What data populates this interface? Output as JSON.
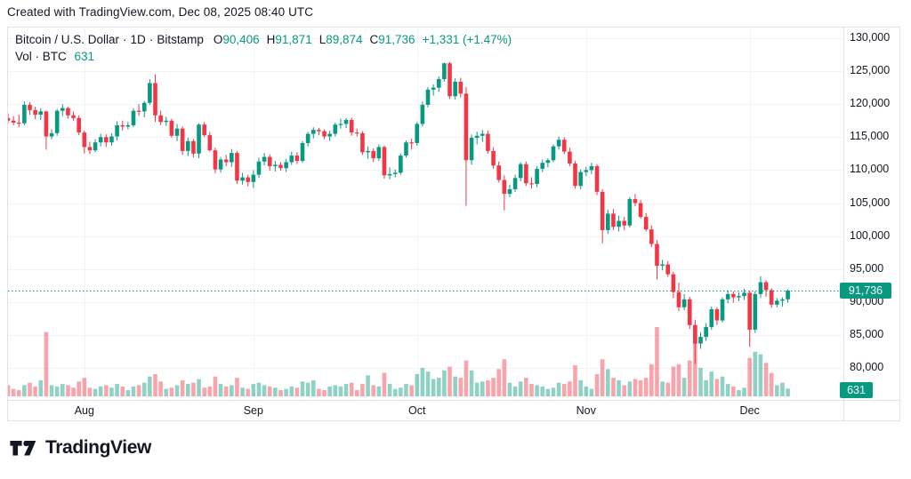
{
  "attribution": "Created with TradingView.com, Dec 08, 2025 08:40 UTC",
  "legend": {
    "symbol": "Bitcoin / U.S. Dollar",
    "sep": "·",
    "interval": "1D",
    "exchange": "Bitstamp",
    "ohlc": [
      {
        "label": "O",
        "value": "90,406"
      },
      {
        "label": "H",
        "value": "91,871"
      },
      {
        "label": "L",
        "value": "89,874"
      },
      {
        "label": "C",
        "value": "91,736"
      }
    ],
    "change": "+1,331 (+1.47%)",
    "volume_row": {
      "label": "Vol · BTC",
      "value": "631"
    }
  },
  "price_axis": {
    "tick_labels": [
      "130,000",
      "125,000",
      "120,000",
      "115,000",
      "110,000",
      "105,000",
      "100,000",
      "95,000",
      "90,000",
      "85,000",
      "80,000"
    ],
    "current_price_badge": "91,736",
    "current_volume_badge": "631"
  },
  "time_axis": {
    "labels": [
      "Aug",
      "Sep",
      "Oct",
      "Nov",
      "Dec"
    ]
  },
  "footer": {
    "brand": "TradingView"
  },
  "colors": {
    "up": "#089981",
    "down": "#f23645",
    "up_volume": "rgba(8,153,129,0.45)",
    "down_volume": "rgba(242,54,69,0.45)",
    "grid": "#f0f3fa",
    "border": "#e0e3eb",
    "text": "#131722",
    "accent": "#089981",
    "badge_text": "#ffffff"
  },
  "chart_data": {
    "type": "candlestick",
    "title": "Bitcoin / U.S. Dollar · 1D · Bitstamp",
    "subpane": "Volume BTC",
    "start_date": "2025-07-18",
    "end_date": "2025-12-08",
    "y_axis_ticks": [
      130000,
      125000,
      120000,
      115000,
      110000,
      105000,
      100000,
      95000,
      90000,
      85000,
      80000
    ],
    "months": [
      {
        "label": "Aug",
        "index": 14
      },
      {
        "label": "Sep",
        "index": 45
      },
      {
        "label": "Oct",
        "index": 75
      },
      {
        "label": "Nov",
        "index": 106
      },
      {
        "label": "Dec",
        "index": 136
      }
    ],
    "current_price": 91736,
    "current_volume": 631,
    "columns": [
      "open",
      "high",
      "low",
      "close",
      "volume"
    ],
    "candles": [
      [
        117900,
        118600,
        117100,
        117500,
        900
      ],
      [
        117500,
        118200,
        116800,
        117200,
        600
      ],
      [
        117200,
        118400,
        116500,
        117100,
        500
      ],
      [
        117100,
        120400,
        116800,
        119900,
        900
      ],
      [
        119900,
        120300,
        118400,
        119100,
        1100
      ],
      [
        119100,
        119600,
        117700,
        118400,
        800
      ],
      [
        118400,
        119400,
        117600,
        118900,
        1300
      ],
      [
        118900,
        119000,
        113100,
        115100,
        5200
      ],
      [
        115100,
        116200,
        114700,
        115600,
        900
      ],
      [
        115600,
        119300,
        115200,
        119000,
        800
      ],
      [
        119000,
        120000,
        118200,
        119400,
        1000
      ],
      [
        119400,
        119600,
        117800,
        118300,
        900
      ],
      [
        118300,
        118900,
        117500,
        117900,
        700
      ],
      [
        117900,
        118300,
        115300,
        115700,
        1200
      ],
      [
        115700,
        116000,
        112500,
        113500,
        1500
      ],
      [
        113500,
        114300,
        112400,
        113000,
        700
      ],
      [
        113000,
        114700,
        112700,
        114200,
        600
      ],
      [
        114200,
        115500,
        113600,
        115000,
        800
      ],
      [
        115000,
        115400,
        113500,
        114200,
        900
      ],
      [
        114200,
        115600,
        113700,
        115100,
        700
      ],
      [
        115100,
        117400,
        114500,
        116800,
        1000
      ],
      [
        116800,
        117500,
        116000,
        116600,
        800
      ],
      [
        116600,
        117300,
        116200,
        116800,
        500
      ],
      [
        116800,
        119400,
        116500,
        119000,
        800
      ],
      [
        119000,
        120000,
        118200,
        118900,
        900
      ],
      [
        118900,
        120500,
        118000,
        120200,
        1100
      ],
      [
        120200,
        123800,
        119900,
        123200,
        1600
      ],
      [
        123200,
        124500,
        117300,
        118300,
        1800
      ],
      [
        118300,
        119000,
        116800,
        117300,
        1200
      ],
      [
        117300,
        118100,
        116700,
        117500,
        600
      ],
      [
        117500,
        117800,
        114900,
        115200,
        700
      ],
      [
        115200,
        117000,
        114400,
        116300,
        900
      ],
      [
        116300,
        116600,
        112300,
        112900,
        1300
      ],
      [
        112900,
        114900,
        112100,
        114400,
        1000
      ],
      [
        114400,
        114700,
        111900,
        112500,
        1100
      ],
      [
        112500,
        117100,
        111800,
        116900,
        1400
      ],
      [
        116900,
        117300,
        115000,
        115300,
        700
      ],
      [
        115300,
        115800,
        112800,
        113000,
        800
      ],
      [
        113000,
        113400,
        109500,
        110100,
        1600
      ],
      [
        110100,
        112000,
        109600,
        111600,
        1000
      ],
      [
        111600,
        112300,
        110600,
        111200,
        800
      ],
      [
        111200,
        113200,
        110500,
        112600,
        900
      ],
      [
        112600,
        112900,
        107900,
        108400,
        1500
      ],
      [
        108400,
        109600,
        107800,
        108900,
        700
      ],
      [
        108900,
        109300,
        107500,
        108200,
        600
      ],
      [
        108200,
        110000,
        107300,
        109300,
        1000
      ],
      [
        109300,
        111900,
        108800,
        111300,
        1100
      ],
      [
        111300,
        112600,
        110700,
        112000,
        900
      ],
      [
        112000,
        112400,
        109900,
        110600,
        800
      ],
      [
        110600,
        111400,
        109800,
        110800,
        700
      ],
      [
        110800,
        111200,
        109900,
        110300,
        500
      ],
      [
        110300,
        111700,
        109700,
        111200,
        600
      ],
      [
        111200,
        112800,
        110800,
        112200,
        800
      ],
      [
        112200,
        112700,
        110900,
        111400,
        700
      ],
      [
        111400,
        114400,
        111100,
        114100,
        1200
      ],
      [
        114100,
        115800,
        113600,
        115500,
        1100
      ],
      [
        115500,
        116500,
        114800,
        116100,
        1300
      ],
      [
        116100,
        116400,
        115300,
        115900,
        600
      ],
      [
        115900,
        116200,
        114700,
        115100,
        500
      ],
      [
        115100,
        116000,
        114400,
        115500,
        800
      ],
      [
        115500,
        117200,
        115100,
        116900,
        900
      ],
      [
        116900,
        117800,
        116300,
        117000,
        800
      ],
      [
        117000,
        117900,
        116400,
        117600,
        1000
      ],
      [
        117600,
        117900,
        115200,
        115700,
        1100
      ],
      [
        115700,
        116300,
        115100,
        115600,
        500
      ],
      [
        115600,
        115900,
        112300,
        112700,
        1000
      ],
      [
        112700,
        113600,
        111700,
        112900,
        1700
      ],
      [
        112900,
        113300,
        111200,
        111800,
        900
      ],
      [
        111800,
        113900,
        111400,
        113500,
        800
      ],
      [
        113500,
        113700,
        108700,
        109200,
        1900
      ],
      [
        109200,
        110400,
        108600,
        109400,
        1000
      ],
      [
        109400,
        110100,
        108900,
        109600,
        600
      ],
      [
        109600,
        112500,
        109300,
        112200,
        700
      ],
      [
        112200,
        114500,
        111900,
        114200,
        1000
      ],
      [
        114200,
        114800,
        113100,
        114100,
        900
      ],
      [
        114100,
        117300,
        113700,
        117000,
        1800
      ],
      [
        117000,
        120400,
        116600,
        119900,
        2300
      ],
      [
        119900,
        122600,
        119500,
        122200,
        2000
      ],
      [
        122200,
        123000,
        121300,
        122500,
        1400
      ],
      [
        122500,
        124200,
        121900,
        123800,
        1500
      ],
      [
        123800,
        126300,
        123400,
        126200,
        2100
      ],
      [
        126200,
        126400,
        120800,
        121200,
        2400
      ],
      [
        121200,
        123900,
        120700,
        123400,
        1600
      ],
      [
        123400,
        124000,
        121000,
        121600,
        1500
      ],
      [
        121600,
        122600,
        104600,
        111500,
        2900
      ],
      [
        111500,
        115400,
        110800,
        114900,
        2100
      ],
      [
        114900,
        115800,
        113900,
        115200,
        1100
      ],
      [
        115200,
        116100,
        114300,
        115500,
        1200
      ],
      [
        115500,
        116000,
        112500,
        112900,
        1300
      ],
      [
        112900,
        113500,
        110200,
        110700,
        1500
      ],
      [
        110700,
        111300,
        108100,
        108500,
        2200
      ],
      [
        108500,
        109200,
        103900,
        106400,
        3000
      ],
      [
        106400,
        107800,
        105900,
        107100,
        1100
      ],
      [
        107100,
        109300,
        106700,
        108800,
        800
      ],
      [
        108800,
        111200,
        108300,
        110900,
        1200
      ],
      [
        110900,
        111300,
        107600,
        108000,
        1500
      ],
      [
        108000,
        108900,
        107200,
        107900,
        1000
      ],
      [
        107900,
        110600,
        107400,
        110200,
        900
      ],
      [
        110200,
        111600,
        109700,
        111100,
        800
      ],
      [
        111100,
        111800,
        110400,
        111500,
        600
      ],
      [
        111500,
        113900,
        111200,
        113600,
        700
      ],
      [
        113600,
        115100,
        113100,
        114600,
        1100
      ],
      [
        114600,
        115000,
        112400,
        112800,
        1000
      ],
      [
        112800,
        113400,
        110600,
        111000,
        1200
      ],
      [
        111000,
        111400,
        107200,
        107600,
        2500
      ],
      [
        107600,
        110100,
        107100,
        109700,
        1300
      ],
      [
        109700,
        110500,
        109100,
        110000,
        800
      ],
      [
        110000,
        111100,
        109400,
        110600,
        600
      ],
      [
        110600,
        110900,
        106200,
        106700,
        1800
      ],
      [
        106700,
        107100,
        98900,
        100900,
        3000
      ],
      [
        100900,
        104000,
        100300,
        103400,
        2200
      ],
      [
        103400,
        104100,
        100900,
        101400,
        1500
      ],
      [
        101400,
        103100,
        100700,
        102300,
        1300
      ],
      [
        102300,
        102900,
        100900,
        101600,
        900
      ],
      [
        101600,
        105900,
        101300,
        105600,
        1200
      ],
      [
        105600,
        106400,
        104500,
        105000,
        1400
      ],
      [
        105000,
        105500,
        102600,
        102900,
        1300
      ],
      [
        102900,
        103500,
        100700,
        101000,
        1500
      ],
      [
        101000,
        101600,
        98300,
        98800,
        2600
      ],
      [
        98800,
        99400,
        93400,
        95500,
        5600
      ],
      [
        95500,
        96400,
        94800,
        95700,
        1200
      ],
      [
        95700,
        96200,
        93800,
        94200,
        1100
      ],
      [
        94200,
        94600,
        90600,
        91500,
        2400
      ],
      [
        91500,
        92900,
        88600,
        89200,
        2600
      ],
      [
        89200,
        91200,
        88800,
        90400,
        1500
      ],
      [
        90400,
        90800,
        85900,
        86500,
        2900
      ],
      [
        86500,
        87300,
        80600,
        83700,
        5000
      ],
      [
        83700,
        85400,
        82900,
        84700,
        2300
      ],
      [
        84700,
        86800,
        84100,
        86200,
        1300
      ],
      [
        86200,
        89300,
        85800,
        88900,
        2000
      ],
      [
        88900,
        89200,
        86500,
        87200,
        1400
      ],
      [
        87200,
        90700,
        86900,
        90400,
        1600
      ],
      [
        90400,
        91800,
        89800,
        91200,
        1000
      ],
      [
        91200,
        91600,
        89900,
        90700,
        800
      ],
      [
        90700,
        91500,
        90100,
        90900,
        500
      ],
      [
        90900,
        92000,
        90300,
        91400,
        700
      ],
      [
        91400,
        91700,
        83200,
        85800,
        3100
      ],
      [
        85800,
        91600,
        85300,
        91200,
        3600
      ],
      [
        91200,
        93900,
        90600,
        93000,
        3400
      ],
      [
        93000,
        93300,
        90800,
        91800,
        2700
      ],
      [
        91800,
        92100,
        89100,
        89600,
        1900
      ],
      [
        89600,
        90600,
        89200,
        90200,
        900
      ],
      [
        90200,
        90700,
        89300,
        90405,
        1100
      ],
      [
        90406,
        91871,
        89874,
        91736,
        631
      ]
    ]
  }
}
